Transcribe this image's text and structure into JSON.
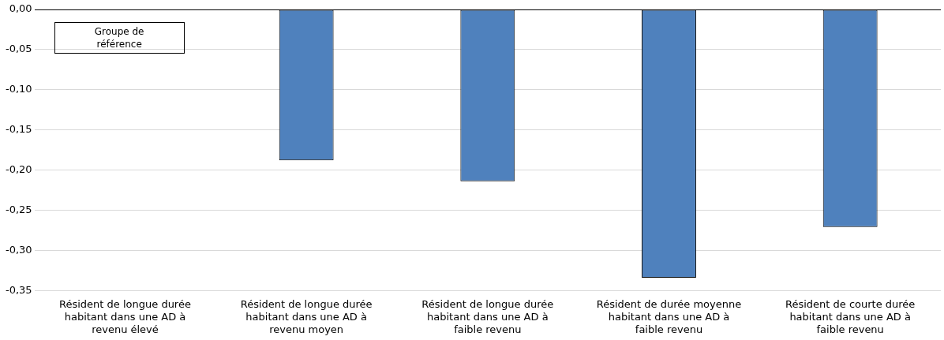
{
  "chart_data": {
    "type": "bar",
    "categories": [
      "Résident de longue durée habitant dans une AD à revenu élevé",
      "Résident de longue durée habitant dans une AD à revenu moyen",
      "Résident de longue durée habitant dans une AD à faible revenu",
      "Résident de durée moyenne habitant dans une AD à faible revenu",
      "Résident de courte durée habitant dans une AD à faible revenu"
    ],
    "values": [
      0,
      -0.188,
      -0.214,
      -0.334,
      -0.271
    ],
    "color": "#4f81bd",
    "ylim": [
      -0.35,
      0
    ],
    "yticks": [
      {
        "value": 0,
        "label": "0,00"
      },
      {
        "value": -0.05,
        "label": "-0,05"
      },
      {
        "value": -0.1,
        "label": "-0,10"
      },
      {
        "value": -0.15,
        "label": "-0,15"
      },
      {
        "value": -0.2,
        "label": "-0,20"
      },
      {
        "value": -0.25,
        "label": "-0,25"
      },
      {
        "value": -0.3,
        "label": "-0,30"
      },
      {
        "value": -0.35,
        "label": "-0,35"
      }
    ],
    "grid": "y",
    "annotations": [
      "Groupe de référence"
    ]
  }
}
